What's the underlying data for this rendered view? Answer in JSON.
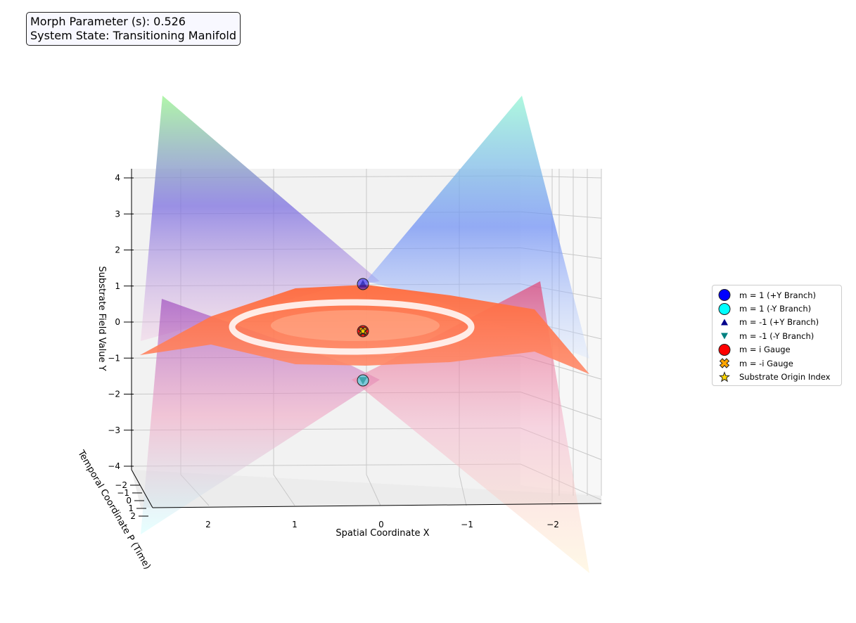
{
  "status": {
    "line1": "Morph Parameter (s): 0.526",
    "line2": "System State: Transitioning Manifold"
  },
  "chart_data": {
    "type": "surface3d",
    "xlabel": "Spatial Coordinate X",
    "ylabel": "Substrate Field Value Y",
    "zlabel": "Temporal Coordinate P (Time)",
    "x_ticks": [
      "2",
      "1",
      "0",
      "−1",
      "−2"
    ],
    "y_ticks": [
      "4",
      "3",
      "2",
      "1",
      "0",
      "−1",
      "−2",
      "−3",
      "−4"
    ],
    "p_ticks": [
      "−2",
      "−1",
      "0",
      "1",
      "2"
    ],
    "xlim": [
      -2.6,
      2.6
    ],
    "ylim": [
      -4,
      4
    ],
    "plim": [
      -2,
      2
    ],
    "grid": true,
    "legend_position": "right",
    "colors": {
      "plus_branch": "#7b8cf0",
      "minus_branch": "#9ff5d6",
      "gauge": "#ff5a3c",
      "grid": "#c8c8c8",
      "pane": "#f2f2f2"
    },
    "markers": [
      {
        "label": "m = 1 (+Y Branch)",
        "symbol": "circle",
        "color": "#0000ff",
        "x": 0,
        "y": 1
      },
      {
        "label": "m = 1 (-Y Branch)",
        "symbol": "circle",
        "color": "#00ffff",
        "x": 0,
        "y": -1
      },
      {
        "label": "m = -1 (+Y Branch)",
        "symbol": "triangle-up",
        "color": "#00008b",
        "x": 0,
        "y": 1
      },
      {
        "label": "m = -1 (-Y Branch)",
        "symbol": "triangle-down",
        "color": "#008080",
        "x": 0,
        "y": -1
      },
      {
        "label": "m = i Gauge",
        "symbol": "circle",
        "color": "#ff0000",
        "x": 0,
        "y": 0
      },
      {
        "label": "m = -i Gauge",
        "symbol": "x-filled",
        "color": "#ffa500",
        "x": 0,
        "y": 0
      },
      {
        "label": "Substrate Origin Index",
        "symbol": "star",
        "color": "#ffd700",
        "x": 0,
        "y": 0
      }
    ]
  }
}
